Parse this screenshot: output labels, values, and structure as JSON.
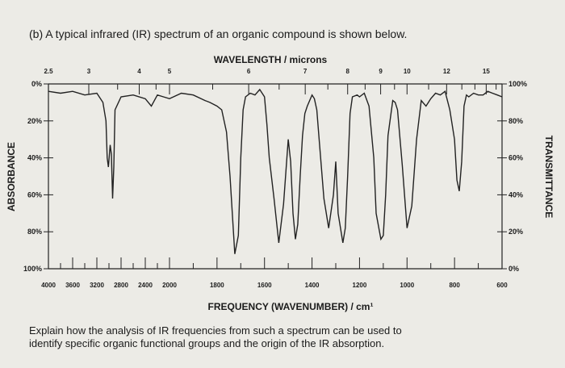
{
  "question": {
    "title": "(b) A typical infrared (IR) spectrum of an organic compound is shown below.",
    "prompt_line1": "Explain how the analysis of IR frequencies from such a spectrum can be used to",
    "prompt_line2": "identify specific organic functional groups and the origin of the IR absorption."
  },
  "chart_data": {
    "type": "line",
    "top_axis_label": "WAVELENGTH / microns",
    "bottom_axis_label": "FREQUENCY (WAVENUMBER) / cm¹",
    "left_axis_label": "ABSORBANCE",
    "right_axis_label": "TRANSMITTANCE",
    "wavelength_ticks": [
      "2.5",
      "3",
      "4",
      "5",
      "6",
      "7",
      "8",
      "9",
      "10",
      "12",
      "15"
    ],
    "wavenumber_ticks": [
      "4000",
      "3600",
      "3200",
      "2800",
      "2400",
      "2000",
      "1800",
      "1600",
      "1400",
      "1200",
      "1000",
      "800",
      "600"
    ],
    "absorbance_ticks": [
      "0%",
      "20%",
      "40%",
      "60%",
      "80%",
      "100%"
    ],
    "transmittance_ticks": [
      "100%",
      "80%",
      "60%",
      "40%",
      "20%",
      "0%"
    ],
    "x_units": "cm-1",
    "y_units": "% transmittance",
    "ylim": [
      0,
      100
    ],
    "series": [
      {
        "x": [
          4000,
          3800,
          3600,
          3400,
          3200,
          3100,
          3050,
          3030,
          3010,
          2980,
          2960,
          2940,
          2920,
          2900,
          2800,
          2600,
          2400,
          2300,
          2200,
          2100,
          2000,
          1950,
          1900,
          1850,
          1830,
          1800,
          1780,
          1760,
          1745,
          1725,
          1710,
          1700,
          1690,
          1680,
          1660,
          1640,
          1620,
          1600,
          1590,
          1580,
          1560,
          1540,
          1520,
          1500,
          1490,
          1480,
          1470,
          1460,
          1450,
          1440,
          1430,
          1420,
          1400,
          1390,
          1380,
          1370,
          1350,
          1330,
          1310,
          1300,
          1290,
          1270,
          1260,
          1250,
          1240,
          1230,
          1210,
          1200,
          1180,
          1160,
          1140,
          1130,
          1110,
          1100,
          1090,
          1080,
          1060,
          1050,
          1040,
          1020,
          1000,
          980,
          960,
          940,
          920,
          900,
          880,
          860,
          840,
          820,
          800,
          790,
          780,
          770,
          760,
          750,
          740,
          720,
          700,
          680,
          660,
          640,
          620,
          600
        ],
        "y": [
          96,
          95,
          96,
          94,
          95,
          90,
          80,
          60,
          55,
          67,
          62,
          38,
          55,
          86,
          93,
          94,
          92,
          88,
          94,
          93,
          92,
          95,
          94,
          91,
          90,
          88,
          86,
          74,
          50,
          8,
          18,
          60,
          86,
          93,
          95,
          94,
          97,
          93,
          78,
          60,
          38,
          14,
          35,
          70,
          58,
          30,
          16,
          24,
          50,
          72,
          84,
          88,
          94,
          92,
          86,
          70,
          38,
          22,
          40,
          58,
          30,
          14,
          22,
          50,
          84,
          93,
          94,
          93,
          95,
          88,
          60,
          30,
          16,
          18,
          40,
          72,
          91,
          90,
          86,
          56,
          22,
          34,
          70,
          91,
          88,
          92,
          95,
          94,
          96,
          86,
          70,
          48,
          42,
          58,
          88,
          94,
          93,
          95,
          94,
          94,
          96,
          95,
          94,
          93
        ]
      }
    ]
  }
}
